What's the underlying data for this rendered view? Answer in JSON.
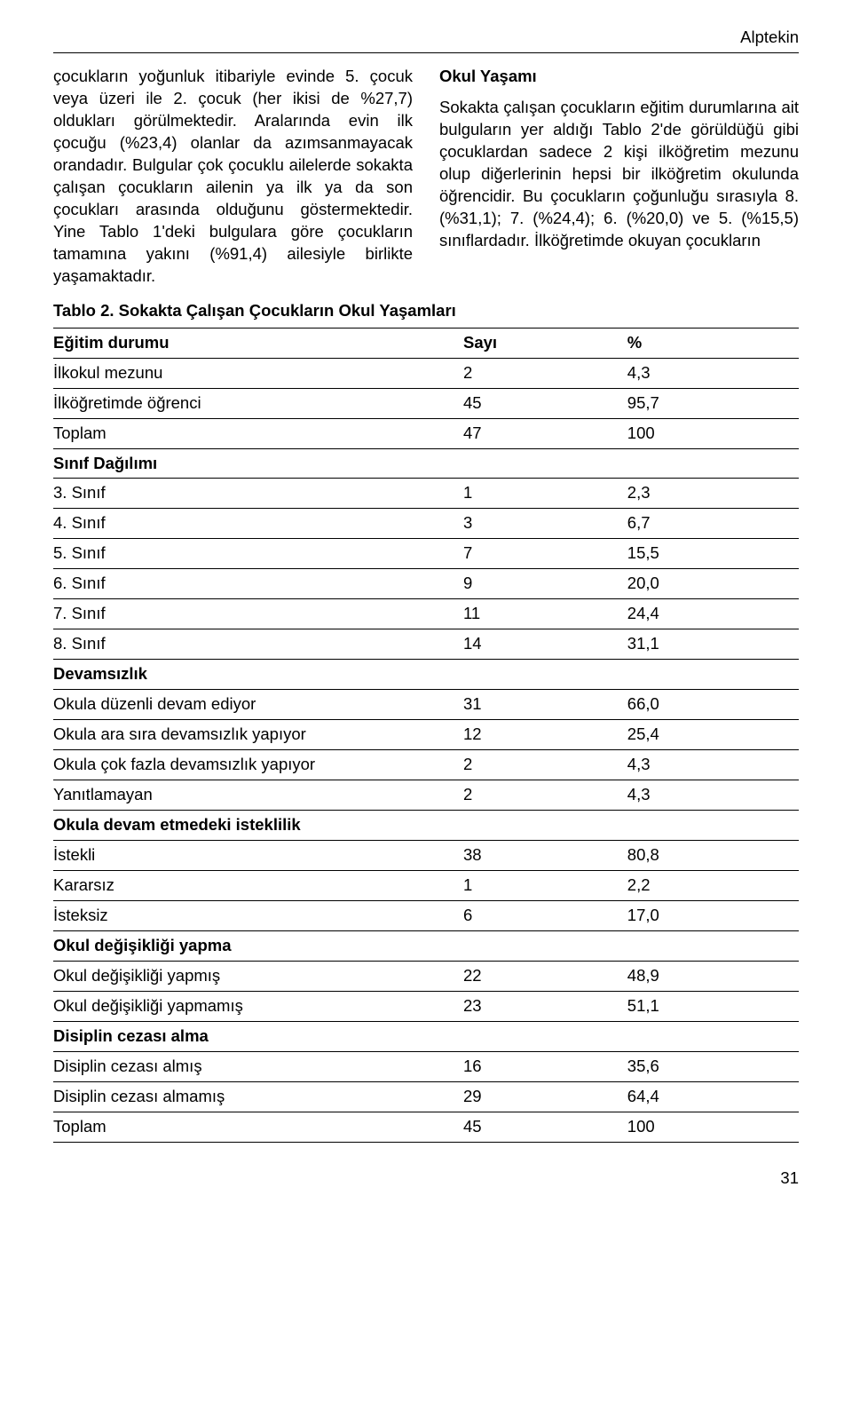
{
  "header": {
    "author": "Alptekin"
  },
  "left_col": {
    "para": "çocukların yoğunluk itibariyle evinde 5. çocuk veya üzeri ile 2. çocuk (her ikisi de %27,7) oldukları görülmektedir. Aralarında evin ilk çocuğu (%23,4) olanlar da azımsanmayacak orandadır. Bulgular çok çocuklu ailelerde sokakta çalışan çocukların ailenin ya ilk ya da son çocukları arasında olduğunu göstermektedir. Yine Tablo 1'deki bulgulara göre çocukların tamamına yakını (%91,4) ailesiyle birlikte yaşamaktadır."
  },
  "right_col": {
    "heading": "Okul Yaşamı",
    "para": "Sokakta çalışan çocukların eğitim durumlarına ait bulguların yer aldığı Tablo 2'de görüldüğü gibi çocuklardan sadece 2 kişi ilköğretim mezunu olup diğerlerinin hepsi bir ilköğretim okulunda öğrencidir. Bu çocukların çoğunluğu sırasıyla 8. (%31,1); 7. (%24,4); 6. (%20,0) ve 5. (%15,5) sınıflardadır. İlköğretimde okuyan çocukların"
  },
  "table": {
    "title": "Tablo 2. Sokakta Çalışan Çocukların Okul Yaşamları",
    "head": {
      "c0": "Eğitim durumu",
      "c1": "Sayı",
      "c2": "%"
    },
    "rows": [
      {
        "type": "data",
        "c0": "İlkokul mezunu",
        "c1": "2",
        "c2": "4,3"
      },
      {
        "type": "data",
        "c0": "İlköğretimde öğrenci",
        "c1": "45",
        "c2": "95,7"
      },
      {
        "type": "data",
        "c0": "Toplam",
        "c1": "47",
        "c2": "100"
      },
      {
        "type": "section",
        "c0": "Sınıf Dağılımı"
      },
      {
        "type": "data",
        "c0": "3. Sınıf",
        "c1": "1",
        "c2": "2,3"
      },
      {
        "type": "data",
        "c0": "4. Sınıf",
        "c1": "3",
        "c2": "6,7"
      },
      {
        "type": "data",
        "c0": "5. Sınıf",
        "c1": "7",
        "c2": "15,5"
      },
      {
        "type": "data",
        "c0": "6. Sınıf",
        "c1": "9",
        "c2": "20,0"
      },
      {
        "type": "data",
        "c0": "7. Sınıf",
        "c1": "11",
        "c2": "24,4"
      },
      {
        "type": "data",
        "c0": "8. Sınıf",
        "c1": "14",
        "c2": "31,1"
      },
      {
        "type": "section",
        "c0": "Devamsızlık"
      },
      {
        "type": "data",
        "c0": "Okula düzenli devam ediyor",
        "c1": "31",
        "c2": "66,0"
      },
      {
        "type": "data",
        "c0": "Okula ara sıra devamsızlık yapıyor",
        "c1": "12",
        "c2": "25,4"
      },
      {
        "type": "data",
        "c0": "Okula çok fazla devamsızlık yapıyor",
        "c1": "2",
        "c2": "4,3"
      },
      {
        "type": "data",
        "c0": "Yanıtlamayan",
        "c1": "2",
        "c2": "4,3"
      },
      {
        "type": "section",
        "c0": "Okula devam etmedeki isteklilik"
      },
      {
        "type": "data",
        "c0": "İstekli",
        "c1": "38",
        "c2": "80,8"
      },
      {
        "type": "data",
        "c0": "Kararsız",
        "c1": "1",
        "c2": "2,2"
      },
      {
        "type": "data",
        "c0": "İsteksiz",
        "c1": "6",
        "c2": "17,0"
      },
      {
        "type": "section",
        "c0": "Okul değişikliği yapma"
      },
      {
        "type": "data",
        "c0": "Okul değişikliği yapmış",
        "c1": "22",
        "c2": "48,9"
      },
      {
        "type": "data",
        "c0": "Okul değişikliği yapmamış",
        "c1": "23",
        "c2": "51,1"
      },
      {
        "type": "section",
        "c0": "Disiplin cezası alma"
      },
      {
        "type": "data",
        "c0": "Disiplin cezası almış",
        "c1": "16",
        "c2": "35,6"
      },
      {
        "type": "data",
        "c0": "Disiplin cezası almamış",
        "c1": "29",
        "c2": "64,4"
      },
      {
        "type": "data",
        "c0": "Toplam",
        "c1": "45",
        "c2": "100"
      }
    ]
  },
  "page_number": "31"
}
